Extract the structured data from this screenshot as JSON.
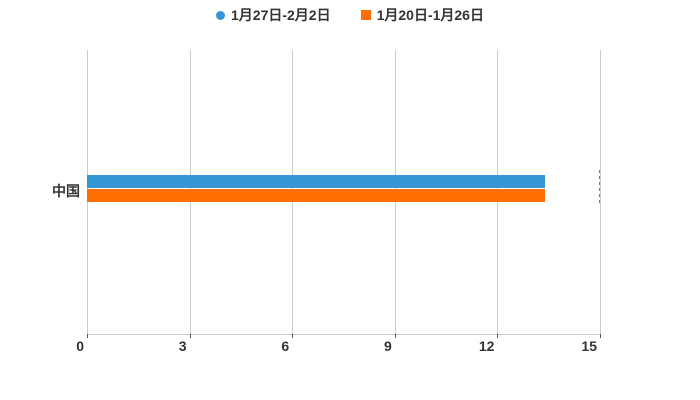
{
  "chart_data": {
    "type": "bar",
    "orientation": "horizontal",
    "title": "",
    "xlabel": "",
    "ylabel": "",
    "categories": [
      "中国"
    ],
    "series": [
      {
        "name": "1月27日-2月2日",
        "color": "#3496D3",
        "marker": "circle",
        "values": [
          13.4
        ]
      },
      {
        "name": "1月20日-1月26日",
        "color": "#FF6E00",
        "marker": "square",
        "values": [
          13.4
        ]
      }
    ],
    "xlim": [
      0,
      15
    ],
    "x_ticks": [
      0,
      3,
      6,
      9,
      12,
      15
    ],
    "grid": true,
    "legend_position": "top-center"
  },
  "legend": {
    "items": [
      {
        "label": "1月27日-2月2日",
        "color": "#3496D3",
        "shape": "circle"
      },
      {
        "label": "1月20日-1月26日",
        "color": "#FF6E00",
        "shape": "square"
      }
    ]
  },
  "axes": {
    "x_tick_labels": [
      "0",
      "3",
      "6",
      "9",
      "12",
      "15"
    ],
    "y_category_labels": [
      "中国"
    ]
  },
  "colors": {
    "background": "#ffffff",
    "gridline": "#cccccc",
    "axis_line": "#cccccc",
    "tick": "#555555",
    "text": "#333333"
  }
}
